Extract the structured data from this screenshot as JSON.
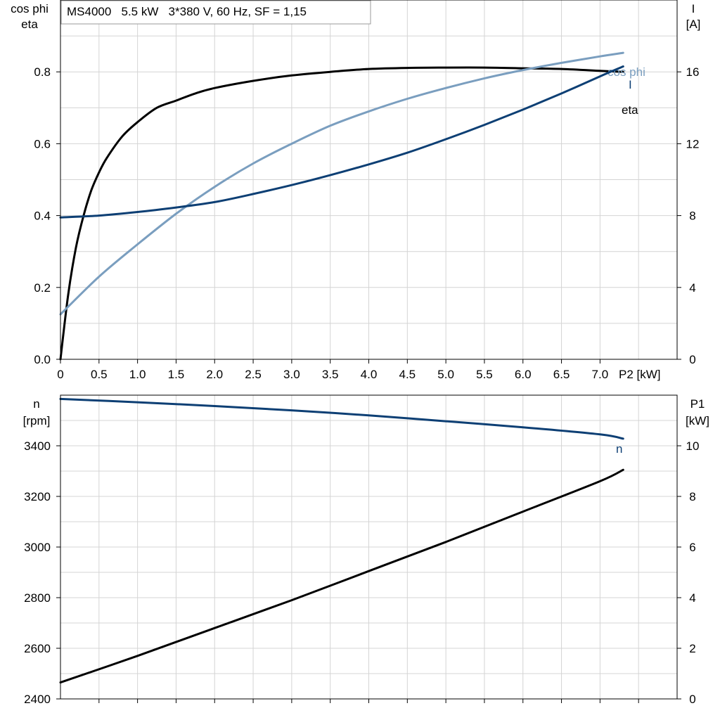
{
  "chart_data": [
    {
      "type": "line",
      "title": "MS4000   5.5 kW   3*380 V, 60 Hz, SF = 1,15",
      "xlabel": "P2 [kW]",
      "xlim": [
        0,
        8
      ],
      "x_ticks": [
        {
          "value": 0,
          "label": "0"
        },
        {
          "value": 0.5,
          "label": "0.5"
        },
        {
          "value": 1,
          "label": "1.0"
        },
        {
          "value": 1.5,
          "label": "1.5"
        },
        {
          "value": 2,
          "label": "2.0"
        },
        {
          "value": 2.5,
          "label": "2.5"
        },
        {
          "value": 3,
          "label": "3.0"
        },
        {
          "value": 3.5,
          "label": "3.5"
        },
        {
          "value": 4,
          "label": "4.0"
        },
        {
          "value": 4.5,
          "label": "4.5"
        },
        {
          "value": 5,
          "label": "5.0"
        },
        {
          "value": 5.5,
          "label": "5.5"
        },
        {
          "value": 6,
          "label": "6.0"
        },
        {
          "value": 6.5,
          "label": "6.5"
        },
        {
          "value": 7,
          "label": "7.0"
        }
      ],
      "y_left": {
        "label_line1": "cos phi",
        "label_line2": "eta",
        "ylim": [
          0,
          1.0
        ],
        "ticks": [
          {
            "value": 0,
            "label": "0.0"
          },
          {
            "value": 0.2,
            "label": "0.2"
          },
          {
            "value": 0.4,
            "label": "0.4"
          },
          {
            "value": 0.6,
            "label": "0.6"
          },
          {
            "value": 0.8,
            "label": "0.8"
          }
        ]
      },
      "y_right": {
        "label_line1": "I",
        "label_line2": "[A]",
        "ylim": [
          0,
          20
        ],
        "ticks": [
          {
            "value": 0,
            "label": "0"
          },
          {
            "value": 4,
            "label": "4"
          },
          {
            "value": 8,
            "label": "8"
          },
          {
            "value": 12,
            "label": "12"
          },
          {
            "value": 16,
            "label": "16"
          }
        ]
      },
      "grid": true,
      "series": [
        {
          "name": "eta",
          "axis": "left",
          "color": "#000000",
          "x": [
            0,
            0.1,
            0.2,
            0.3,
            0.4,
            0.5,
            0.6,
            0.8,
            1.0,
            1.25,
            1.5,
            1.75,
            2.0,
            2.5,
            3.0,
            3.5,
            4.0,
            4.5,
            5.0,
            5.5,
            6.0,
            6.5,
            7.0,
            7.3
          ],
          "y": [
            0.0,
            0.18,
            0.31,
            0.4,
            0.47,
            0.52,
            0.56,
            0.62,
            0.66,
            0.7,
            0.72,
            0.74,
            0.755,
            0.775,
            0.79,
            0.8,
            0.808,
            0.811,
            0.812,
            0.812,
            0.81,
            0.808,
            0.803,
            0.8
          ]
        },
        {
          "name": "cos phi",
          "axis": "left",
          "color": "#7a9ebf",
          "x": [
            0,
            0.5,
            1.0,
            1.5,
            2.0,
            2.5,
            3.0,
            3.5,
            4.0,
            4.5,
            5.0,
            5.5,
            6.0,
            6.5,
            7.0,
            7.3
          ],
          "y": [
            0.125,
            0.23,
            0.32,
            0.405,
            0.48,
            0.545,
            0.6,
            0.65,
            0.69,
            0.725,
            0.755,
            0.782,
            0.805,
            0.825,
            0.843,
            0.853
          ]
        },
        {
          "name": "I",
          "axis": "right",
          "color": "#0d3f74",
          "x": [
            0,
            0.5,
            1.0,
            1.5,
            2.0,
            2.5,
            3.0,
            3.5,
            4.0,
            4.5,
            5.0,
            5.5,
            6.0,
            6.5,
            7.0,
            7.3
          ],
          "y": [
            7.9,
            8.0,
            8.2,
            8.45,
            8.75,
            9.2,
            9.7,
            10.25,
            10.85,
            11.5,
            12.25,
            13.05,
            13.9,
            14.8,
            15.75,
            16.3
          ]
        }
      ]
    },
    {
      "type": "line",
      "xlim": [
        0,
        8
      ],
      "y_left": {
        "label_line1": "n",
        "label_line2": "[rpm]",
        "ylim": [
          2400,
          3600
        ],
        "ticks": [
          {
            "value": 2400,
            "label": "2400"
          },
          {
            "value": 2600,
            "label": "2600"
          },
          {
            "value": 2800,
            "label": "2800"
          },
          {
            "value": 3000,
            "label": "3000"
          },
          {
            "value": 3200,
            "label": "3200"
          },
          {
            "value": 3400,
            "label": "3400"
          }
        ]
      },
      "y_right": {
        "label_line1": "P1",
        "label_line2": "[kW]",
        "ylim": [
          0,
          12
        ],
        "ticks": [
          {
            "value": 0,
            "label": "0"
          },
          {
            "value": 2,
            "label": "2"
          },
          {
            "value": 4,
            "label": "4"
          },
          {
            "value": 6,
            "label": "6"
          },
          {
            "value": 8,
            "label": "8"
          },
          {
            "value": 10,
            "label": "10"
          }
        ]
      },
      "grid": true,
      "series": [
        {
          "name": "n",
          "axis": "left",
          "color": "#0d3f74",
          "x": [
            0,
            1,
            2,
            3,
            4,
            5,
            6,
            7,
            7.3
          ],
          "y": [
            3585,
            3572,
            3557,
            3540,
            3520,
            3497,
            3473,
            3445,
            3428
          ]
        },
        {
          "axis": "right",
          "color": "#000000",
          "x": [
            0,
            1,
            2,
            3,
            4,
            5,
            6,
            7,
            7.3
          ],
          "y": [
            0.65,
            1.7,
            2.8,
            3.9,
            5.05,
            6.2,
            7.4,
            8.6,
            9.05
          ]
        }
      ]
    }
  ]
}
